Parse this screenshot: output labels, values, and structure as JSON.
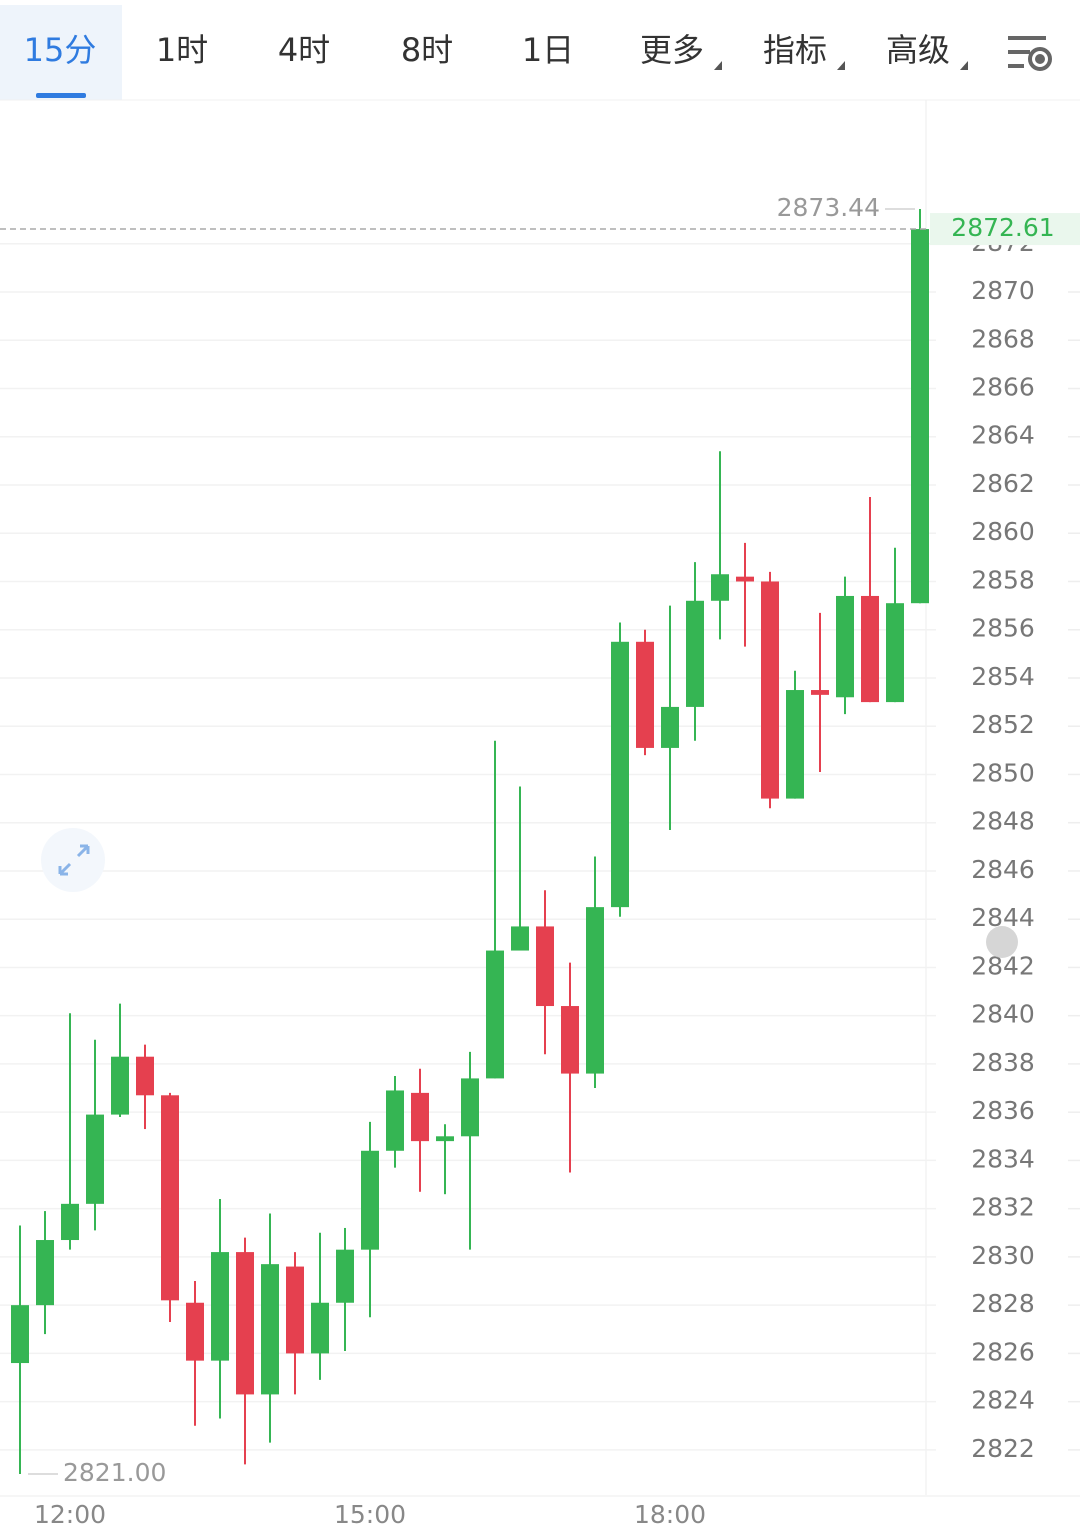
{
  "tabs": [
    "15分",
    "1时",
    "4时",
    "8时",
    "1日",
    "更多",
    "指标",
    "高级"
  ],
  "chart_data": {
    "type": "candlestick",
    "categories": [
      null,
      null,
      "12:00",
      null,
      null,
      null,
      null,
      null,
      null,
      null,
      null,
      null,
      null,
      null,
      "15:00",
      null,
      null,
      null,
      null,
      null,
      null,
      null,
      null,
      null,
      null,
      null,
      "18:00",
      null,
      null,
      null,
      null,
      null,
      null,
      null,
      null,
      null,
      null
    ],
    "open": [
      2825.6,
      2828.0,
      2830.7,
      2832.2,
      2835.9,
      2838.3,
      2836.7,
      2828.1,
      2825.7,
      2830.2,
      2824.3,
      2829.6,
      2826.0,
      2828.1,
      2830.3,
      2834.4,
      2836.8,
      2834.8,
      2835.0,
      2837.4,
      2842.7,
      2843.7,
      2840.4,
      2837.6,
      2844.5,
      2855.5,
      2851.1,
      2852.8,
      2857.2,
      2858.2,
      2858.0,
      2849.0,
      2853.5,
      2853.2,
      2857.4,
      2853.0,
      2857.1
    ],
    "high": [
      2831.3,
      2831.9,
      2840.1,
      2839.0,
      2840.5,
      2838.8,
      2836.8,
      2829.0,
      2832.4,
      2830.8,
      2831.8,
      2830.2,
      2831.0,
      2831.2,
      2835.6,
      2837.5,
      2837.8,
      2835.5,
      2838.5,
      2851.4,
      2849.5,
      2845.2,
      2842.2,
      2846.6,
      2856.3,
      2856.0,
      2857.0,
      2858.8,
      2863.4,
      2859.6,
      2858.4,
      2854.3,
      2856.7,
      2858.2,
      2861.5,
      2859.4,
      2873.44
    ],
    "low": [
      2821.0,
      2826.8,
      2830.3,
      2831.1,
      2835.8,
      2835.3,
      2827.3,
      2823.0,
      2823.3,
      2821.4,
      2822.3,
      2824.3,
      2824.9,
      2826.1,
      2827.5,
      2833.7,
      2832.7,
      2832.6,
      2830.3,
      2837.4,
      2842.7,
      2838.4,
      2833.5,
      2837.0,
      2844.1,
      2850.8,
      2847.7,
      2851.4,
      2855.6,
      2855.3,
      2848.6,
      2849.0,
      2850.1,
      2852.5,
      2853.0,
      2853.0,
      2857.1
    ],
    "close": [
      2828.0,
      2830.7,
      2832.2,
      2835.9,
      2838.3,
      2836.7,
      2828.2,
      2825.7,
      2830.2,
      2824.3,
      2829.7,
      2826.0,
      2828.1,
      2830.3,
      2834.4,
      2836.9,
      2834.8,
      2835.0,
      2837.4,
      2842.7,
      2843.7,
      2840.4,
      2837.6,
      2844.5,
      2855.5,
      2851.1,
      2852.8,
      2857.2,
      2858.3,
      2858.0,
      2849.0,
      2853.5,
      2853.3,
      2857.4,
      2853.0,
      2857.1,
      2872.61
    ],
    "up_color": "#35b553",
    "down_color": "#e5404f",
    "ylim": [
      2820.13,
      2877.96
    ],
    "yticks": [
      2822,
      2824,
      2826,
      2828,
      2830,
      2832,
      2834,
      2836,
      2838,
      2840,
      2842,
      2844,
      2846,
      2848,
      2850,
      2852,
      2854,
      2856,
      2858,
      2860,
      2862,
      2864,
      2866,
      2868,
      2870,
      2872
    ],
    "grid": true,
    "high_label": 2873.44,
    "low_label": {
      "value": 2821,
      "label": "2821.00"
    },
    "last_price": 2872.61
  }
}
